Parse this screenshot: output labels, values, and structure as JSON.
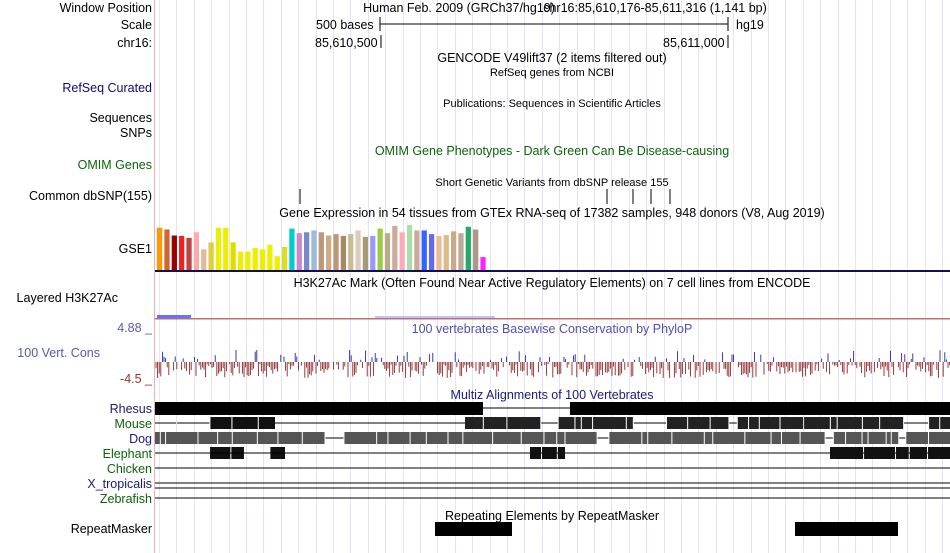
{
  "header": {
    "window_position_label": "Window Position",
    "scale_label": "Scale",
    "chrom_label": "chr16:",
    "assembly": "Human Feb. 2009 (GRCh37/hg19)",
    "position": "chr16:85,610,176-85,611,316 (1,141 bp)",
    "scale_text": "500 bases",
    "db": "hg19",
    "tick1": "85,610,500",
    "tick2": "85,611,000"
  },
  "tracks": {
    "gencode_title": "GENCODE V49lift37 (2 items filtered out)",
    "refseq_label": "RefSeq Curated",
    "refseq_title": "RefSeq genes from NCBI",
    "publications_title": "Publications: Sequences in Scientific Articles",
    "sequences_label": "Sequences",
    "snps_label": "SNPs",
    "omim_label": "OMIM Genes",
    "omim_title": "OMIM Gene Phenotypes - Dark Green Can Be Disease-causing",
    "dbsnp_label": "Common dbSNP(155)",
    "dbsnp_title": "Short Genetic Variants from dbSNP release 155",
    "gtex_title": "Gene Expression in 54 tissues from GTEx RNA-seq of 17382 samples, 948 donors (V8, Aug 2019)",
    "gtex_label": "GSE1",
    "h3k27ac_label": "Layered H3K27Ac",
    "h3k27ac_title": "H3K27Ac Mark (Often Found Near Active Regulatory Elements) on 7 cell lines from ENCODE",
    "cons_max": "4.88 _",
    "cons_label": "100 Vert. Cons",
    "cons_min": "-4.5 _",
    "cons_title": "100 vertebrates Basewise Conservation by PhyloP",
    "multiz_title": "Multiz Alignments of 100 Vertebrates",
    "species": [
      {
        "name": "Rhesus",
        "color": "#1a1a7e"
      },
      {
        "name": "Mouse",
        "color": "#0c640c"
      },
      {
        "name": "Dog",
        "color": "#1a1a7e"
      },
      {
        "name": "Elephant",
        "color": "#0c640c"
      },
      {
        "name": "Chicken",
        "color": "#0c640c"
      },
      {
        "name": "X_tropicalis",
        "color": "#1a1a7e"
      },
      {
        "name": "Zebrafish",
        "color": "#0c640c"
      }
    ],
    "repeat_label": "RepeatMasker",
    "repeat_title": "Repeating Elements by RepeatMasker"
  },
  "gtex": {
    "colors": [
      "#ff9900",
      "#cc6633",
      "#990000",
      "#ee2222",
      "#bb4444",
      "#ffaaaa",
      "#ddbb99",
      "#ddcc44",
      "#eeee00",
      "#eeee00",
      "#dddd00",
      "#eeee00",
      "#eeee00",
      "#eeee00",
      "#eeee00",
      "#eeee00",
      "#eeee00",
      "#dddd22",
      "#00cccc",
      "#cc88cc",
      "#7788cc",
      "#99bbdd",
      "#bb9977",
      "#ccaa88",
      "#bb9977",
      "#aa8866",
      "#ccbb99",
      "#ddccbb",
      "#aa9977",
      "#9999ff",
      "#99cc44",
      "#bbaa88",
      "#ccaa99",
      "#ffaabb",
      "#aaddaa",
      "#ccaa99",
      "#3366ff",
      "#6666ee",
      "#eebb99",
      "#ddbb88",
      "#ccaa88",
      "#bbaa99",
      "#22aa66",
      "#aa9988",
      "#ff22ff",
      "#888888"
    ],
    "values": [
      0.92,
      0.88,
      0.75,
      0.74,
      0.7,
      0.82,
      0.45,
      0.6,
      0.92,
      0.92,
      0.6,
      0.4,
      0.4,
      0.48,
      0.45,
      0.55,
      0.3,
      0.5,
      0.9,
      0.8,
      0.82,
      0.86,
      0.82,
      0.75,
      0.78,
      0.74,
      0.78,
      0.86,
      0.72,
      0.74,
      0.9,
      0.8,
      0.96,
      0.82,
      0.98,
      0.86,
      0.86,
      0.78,
      0.74,
      0.76,
      0.84,
      0.8,
      0.94,
      0.88,
      0.28,
      0
    ]
  },
  "cons": {
    "max": 4.88,
    "min": -4.5
  },
  "repeat": {
    "blocks": [
      [
        435,
        512
      ],
      [
        795,
        898
      ]
    ]
  }
}
